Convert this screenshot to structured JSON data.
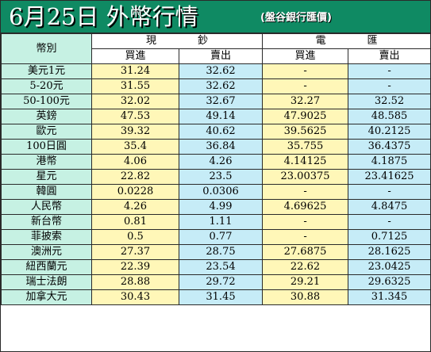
{
  "title": {
    "main": "6月25日 外幣行情",
    "sub": "(盤谷銀行匯價)"
  },
  "header": {
    "currency_col": "幣別",
    "cash_group": "現　　　　鈔",
    "wire_group": "電　　　　匯",
    "cash_buy": "買進",
    "cash_sell": "賣出",
    "wire_buy": "買進",
    "wire_sell": "賣出"
  },
  "rows": [
    {
      "currency": "美元1元",
      "cash_buy": "31.24",
      "cash_sell": "32.62",
      "wire_buy": "-",
      "wire_sell": "-"
    },
    {
      "currency": "5-20元",
      "cash_buy": "31.55",
      "cash_sell": "32.62",
      "wire_buy": "-",
      "wire_sell": "-"
    },
    {
      "currency": "50-100元",
      "cash_buy": "32.02",
      "cash_sell": "32.67",
      "wire_buy": "32.27",
      "wire_sell": "32.52"
    },
    {
      "currency": "英鎊",
      "cash_buy": "47.53",
      "cash_sell": "49.14",
      "wire_buy": "47.9025",
      "wire_sell": "48.585"
    },
    {
      "currency": "歐元",
      "cash_buy": "39.32",
      "cash_sell": "40.62",
      "wire_buy": "39.5625",
      "wire_sell": "40.2125"
    },
    {
      "currency": "100日圓",
      "cash_buy": "35.4",
      "cash_sell": "36.84",
      "wire_buy": "35.755",
      "wire_sell": "36.4375"
    },
    {
      "currency": "港幣",
      "cash_buy": "4.06",
      "cash_sell": "4.26",
      "wire_buy": "4.14125",
      "wire_sell": "4.1875"
    },
    {
      "currency": "星元",
      "cash_buy": "22.82",
      "cash_sell": "23.5",
      "wire_buy": "23.00375",
      "wire_sell": "23.41625"
    },
    {
      "currency": "韓圓",
      "cash_buy": "0.0228",
      "cash_sell": "0.0306",
      "wire_buy": "-",
      "wire_sell": "-"
    },
    {
      "currency": "人民幣",
      "cash_buy": "4.26",
      "cash_sell": "4.99",
      "wire_buy": "4.69625",
      "wire_sell": "4.8475"
    },
    {
      "currency": "新台幣",
      "cash_buy": "0.81",
      "cash_sell": "1.11",
      "wire_buy": "-",
      "wire_sell": "-"
    },
    {
      "currency": "菲披索",
      "cash_buy": "0.5",
      "cash_sell": "0.77",
      "wire_buy": "-",
      "wire_sell": "0.7125"
    },
    {
      "currency": "澳洲元",
      "cash_buy": "27.37",
      "cash_sell": "28.75",
      "wire_buy": "27.6875",
      "wire_sell": "28.1625"
    },
    {
      "currency": "紐西蘭元",
      "cash_buy": "22.39",
      "cash_sell": "23.54",
      "wire_buy": "22.62",
      "wire_sell": "23.0425"
    },
    {
      "currency": "瑞士法朗",
      "cash_buy": "28.88",
      "cash_sell": "29.72",
      "wire_buy": "29.21",
      "wire_sell": "29.6325"
    },
    {
      "currency": "加拿大元",
      "cash_buy": "30.43",
      "cash_sell": "31.45",
      "wire_buy": "30.88",
      "wire_sell": "31.345"
    }
  ],
  "colors": {
    "title_bg": "#0f8a63",
    "currency_bg": "#c6f1e3",
    "buy_bg": "#fff7b8",
    "sell_bg": "#c6ecf7"
  }
}
